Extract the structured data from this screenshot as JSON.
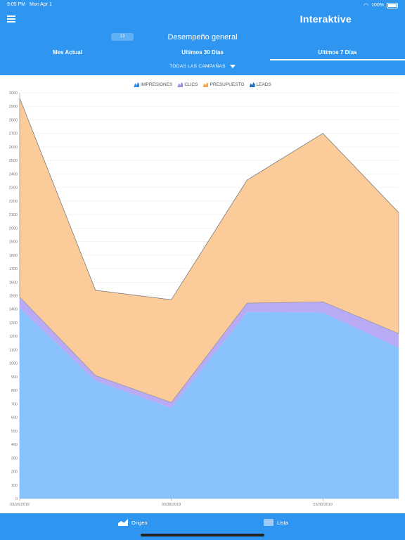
{
  "status_bar": {
    "time": "9:05 PM",
    "date": "Mon Apr 1",
    "battery": "100%"
  },
  "header": {
    "brand": "Interaktive",
    "badge": "13",
    "title": "Desempeño general",
    "tabs": [
      {
        "label": "Mes Actual",
        "active": false
      },
      {
        "label": "Ultimos 30 Días",
        "active": false
      },
      {
        "label": "Ultimos 7 Días",
        "active": true
      }
    ],
    "campaign_filter": "TODAS LAS CAMPAÑAS"
  },
  "colors": {
    "header_bg": "#2e96f0",
    "impresiones": "#88c1fb",
    "clics": "#b8aaf4",
    "presupuesto": "#fbcc9a",
    "leads": "#1c6fc2"
  },
  "chart_data": {
    "type": "area",
    "stacked": true,
    "x_labels": [
      "03/26/2019",
      "03/28/2019",
      "03/30/2019"
    ],
    "x_label_positions": [
      0,
      2,
      4
    ],
    "ylim": [
      0,
      3000
    ],
    "yticks": [
      0,
      100,
      200,
      300,
      400,
      500,
      600,
      700,
      800,
      900,
      1000,
      1100,
      1200,
      1300,
      1400,
      1500,
      1600,
      1700,
      1800,
      1900,
      2000,
      2100,
      2200,
      2300,
      2400,
      2500,
      2600,
      2700,
      2800,
      2900,
      3000
    ],
    "grid": true,
    "legend_position": "top-center",
    "series": [
      {
        "name": "IMPRESIONES",
        "values": [
          1410,
          870,
          670,
          1380,
          1375,
          1115
        ]
      },
      {
        "name": "CLICS",
        "values": [
          80,
          40,
          40,
          65,
          80,
          105
        ]
      },
      {
        "name": "PRESUPUESTO",
        "values": [
          1470,
          630,
          760,
          910,
          1245,
          895
        ]
      },
      {
        "name": "LEADS",
        "values": [
          0,
          0,
          0,
          0,
          0,
          0
        ]
      }
    ]
  },
  "footer": {
    "origen": "Origen",
    "lista": "Lista"
  }
}
